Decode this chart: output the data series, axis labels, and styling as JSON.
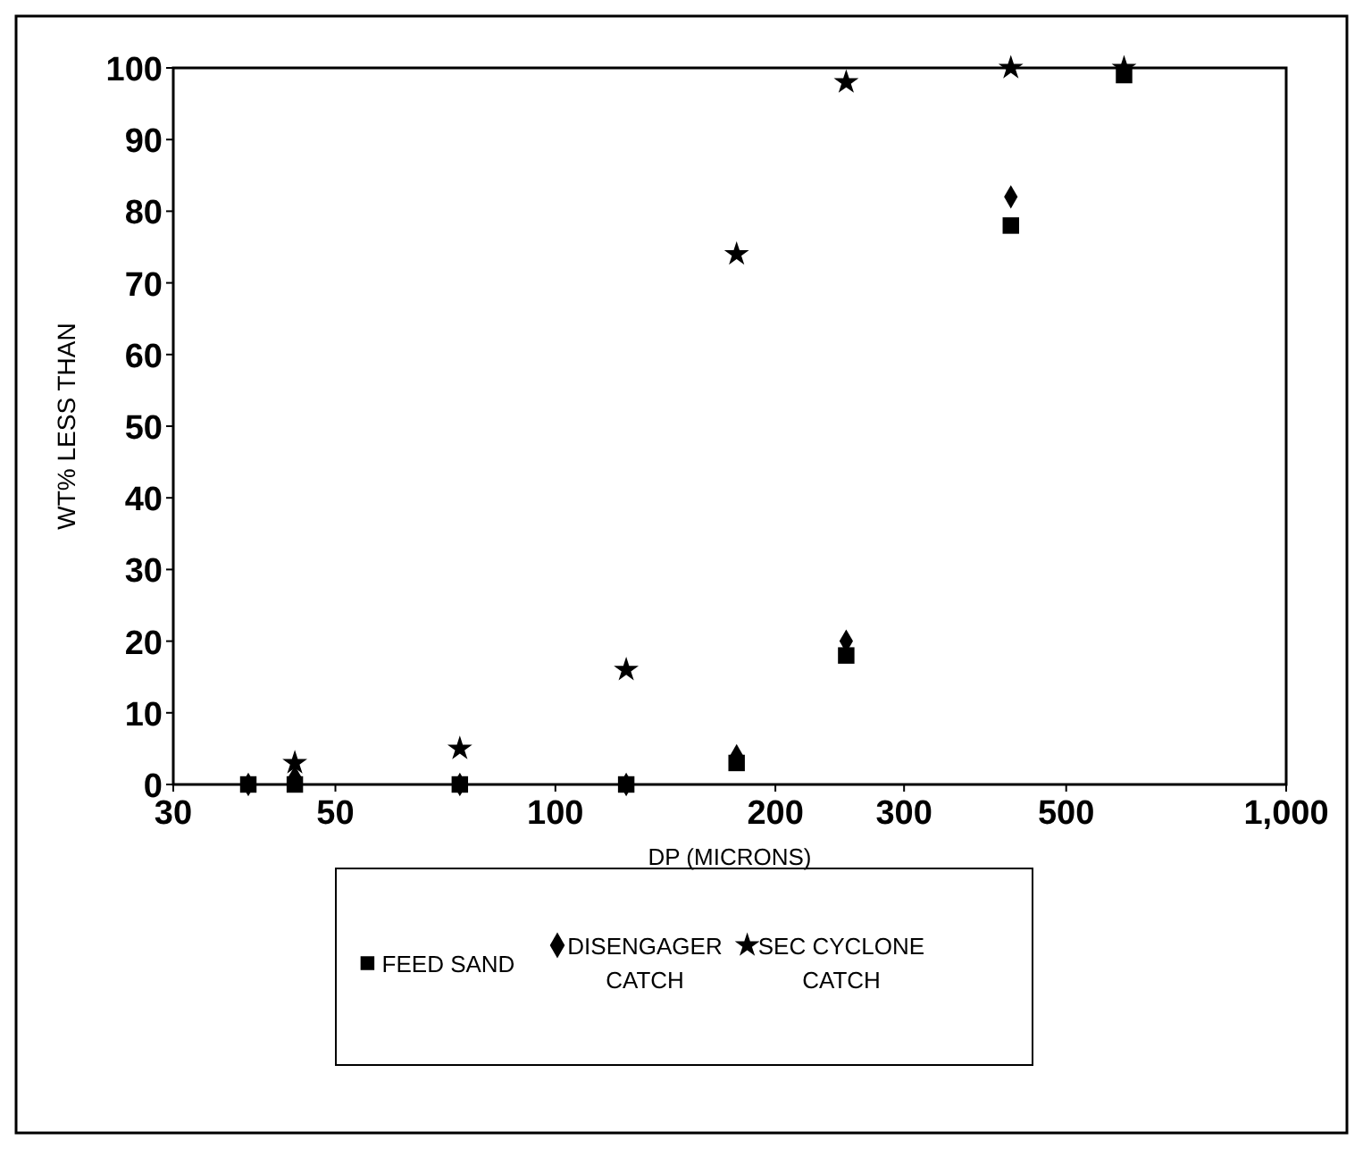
{
  "chart_data": {
    "type": "scatter",
    "xlabel": "DP (MICRONS)",
    "ylabel": "WT% LESS THAN",
    "log": "x",
    "xlim": [
      30,
      1000
    ],
    "xticks": [
      30,
      50,
      100,
      200,
      300,
      500,
      {
        "value": 1000,
        "label": "1,000"
      }
    ],
    "ylim": [
      0,
      100
    ],
    "yticks": [
      0,
      10,
      20,
      30,
      40,
      50,
      60,
      70,
      80,
      90,
      100
    ],
    "legend": "bottom",
    "series": [
      {
        "name": "FEED SAND",
        "color": "#000000",
        "marker": "square",
        "x": [
          38,
          44,
          74,
          125,
          177,
          250,
          420,
          600
        ],
        "values": [
          0,
          0,
          0,
          0,
          3,
          18,
          78,
          99
        ]
      },
      {
        "name": "DISENGAGER CATCH",
        "color": "#000000",
        "marker": "diamond",
        "x": [
          38,
          44,
          74,
          125,
          177,
          250,
          420
        ],
        "values": [
          0,
          1,
          0,
          0,
          4,
          20,
          82
        ]
      },
      {
        "name": "SEC CYCLONE CATCH",
        "color": "#000000",
        "marker": "star",
        "x": [
          44,
          74,
          125,
          177,
          250,
          420,
          600
        ],
        "values": [
          3,
          5,
          16,
          74,
          98,
          100,
          100
        ]
      }
    ]
  }
}
